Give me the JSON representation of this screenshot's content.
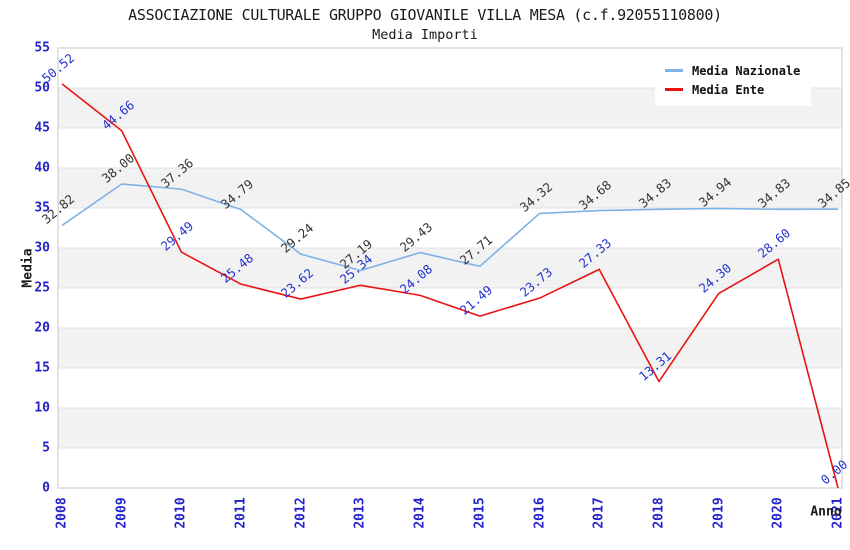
{
  "chart_data": {
    "type": "line",
    "title": "ASSOCIAZIONE CULTURALE GRUPPO GIOVANILE VILLA MESA (c.f.92055110800)",
    "subtitle": "Media Importi",
    "xlabel": "Anno",
    "ylabel": "Media",
    "ylim": [
      0,
      55
    ],
    "ytick_step": 5,
    "grid": "horizontal-bands",
    "legend_position": "top-right",
    "categories": [
      "2008",
      "2009",
      "2010",
      "2011",
      "2012",
      "2013",
      "2014",
      "2015",
      "2016",
      "2017",
      "2018",
      "2019",
      "2020",
      "2021"
    ],
    "series": [
      {
        "name": "Media Nazionale",
        "color": "#7fb2e5",
        "label_color": "#333333",
        "values": [
          32.82,
          38.0,
          37.36,
          34.79,
          29.24,
          27.19,
          29.43,
          27.71,
          34.32,
          34.68,
          34.83,
          34.94,
          34.83,
          34.85
        ]
      },
      {
        "name": "Media Ente",
        "color": "#e81414",
        "label_color": "#2233cc",
        "values": [
          50.52,
          44.66,
          29.49,
          25.48,
          23.62,
          25.34,
          24.08,
          21.49,
          23.73,
          27.33,
          13.31,
          24.3,
          28.6,
          0.0
        ]
      }
    ],
    "colors": {
      "axis_tick": "#2222cc",
      "band_gray": "#f2f2f2",
      "band_white": "#ffffff",
      "gridline": "#e2e2e2",
      "plot_border": "#c8c8c8",
      "title_text": "#1a1a1a"
    }
  }
}
